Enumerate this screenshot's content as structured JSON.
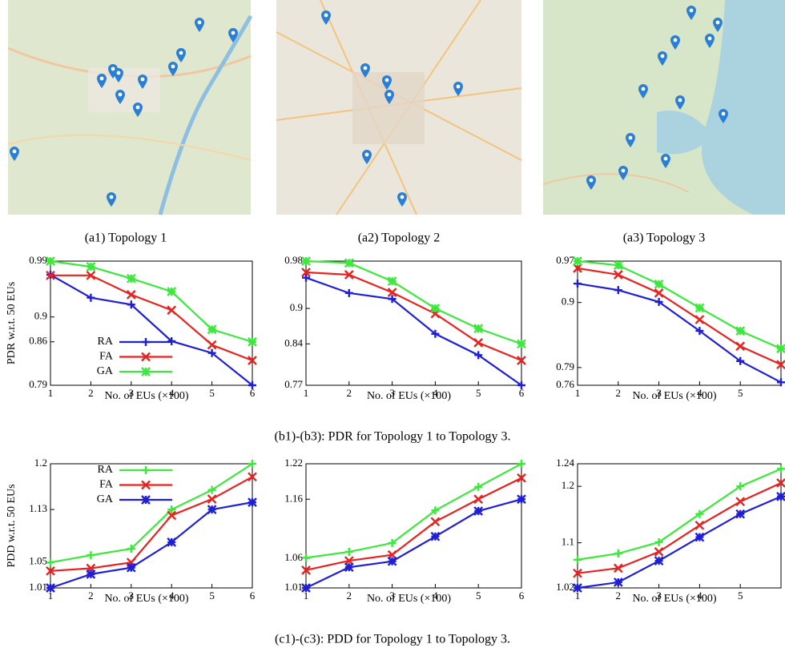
{
  "figure": {
    "map_captions": [
      "(a1) Topology 1",
      "(a2) Topology 2",
      "(a3) Topology 3"
    ],
    "row_captions": [
      "(b1)-(b3): PDR for Topology 1 to Topology 3.",
      "(c1)-(c3): PDD for Topology 1 to Topology 3."
    ]
  },
  "chart_data": [
    {
      "type": "line",
      "xlabel": "No. of EUs (×100)",
      "ylabel": "PDR w.r.t. 50 EUs",
      "legend": "center-left",
      "x": [
        1,
        2,
        3,
        4,
        5,
        6
      ],
      "xlim": [
        1,
        6
      ],
      "xticks": [
        1,
        2,
        3,
        4,
        5,
        6
      ],
      "ylim": [
        0.79,
        0.99
      ],
      "yticks": [
        0.79,
        0.86,
        0.9,
        0.99
      ],
      "series": [
        {
          "name": "RA",
          "color": "#1f1fd6",
          "values": [
            0.968,
            0.931,
            0.92,
            0.861,
            0.842,
            0.79
          ]
        },
        {
          "name": "FA",
          "color": "#e8231f",
          "values": [
            0.967,
            0.967,
            0.936,
            0.911,
            0.855,
            0.83
          ]
        },
        {
          "name": "GA",
          "color": "#3ce83c",
          "values": [
            0.99,
            0.981,
            0.962,
            0.941,
            0.88,
            0.86
          ]
        }
      ]
    },
    {
      "type": "line",
      "xlabel": "No. of EUs (×100)",
      "x": [
        1,
        2,
        3,
        4,
        5,
        6
      ],
      "xlim": [
        1,
        6
      ],
      "xticks": [
        1,
        2,
        3,
        4,
        5,
        6
      ],
      "ylim": [
        0.77,
        0.98
      ],
      "yticks": [
        0.77,
        0.84,
        0.9,
        0.98
      ],
      "series": [
        {
          "name": "RA",
          "color": "#1f1fd6",
          "values": [
            0.952,
            0.926,
            0.916,
            0.857,
            0.821,
            0.77
          ]
        },
        {
          "name": "FA",
          "color": "#e8231f",
          "values": [
            0.961,
            0.957,
            0.927,
            0.891,
            0.842,
            0.812
          ]
        },
        {
          "name": "GA",
          "color": "#3ce83c",
          "values": [
            0.98,
            0.977,
            0.946,
            0.9,
            0.866,
            0.84
          ]
        }
      ]
    },
    {
      "type": "line",
      "xlabel": "No. of EUs (×100)",
      "x": [
        1,
        2,
        3,
        4,
        5,
        6
      ],
      "xlim": [
        1,
        6
      ],
      "xticks": [
        1,
        2,
        3,
        4,
        5
      ],
      "ylim": [
        0.76,
        0.97
      ],
      "yticks": [
        0.76,
        0.79,
        0.9,
        0.97
      ],
      "series": [
        {
          "name": "RA",
          "color": "#1f1fd6",
          "values": [
            0.932,
            0.921,
            0.901,
            0.852,
            0.801,
            0.765
          ]
        },
        {
          "name": "FA",
          "color": "#e8231f",
          "values": [
            0.958,
            0.947,
            0.916,
            0.871,
            0.826,
            0.795
          ]
        },
        {
          "name": "GA",
          "color": "#3ce83c",
          "values": [
            0.97,
            0.963,
            0.931,
            0.891,
            0.852,
            0.822
          ]
        }
      ]
    },
    {
      "type": "line",
      "xlabel": "No. of EUs (×100)",
      "ylabel": "PDD w.r.t. 50 EUs",
      "legend": "upper-left",
      "x": [
        1,
        2,
        3,
        4,
        5,
        6
      ],
      "xlim": [
        1,
        6
      ],
      "xticks": [
        1,
        2,
        3,
        4,
        5,
        6
      ],
      "ylim": [
        1.01,
        1.2
      ],
      "yticks": [
        1.01,
        1.05,
        1.13,
        1.2
      ],
      "series": [
        {
          "name": "RA",
          "color": "#3ce83c",
          "values": [
            1.049,
            1.06,
            1.07,
            1.13,
            1.16,
            1.2
          ]
        },
        {
          "name": "FA",
          "color": "#e8231f",
          "values": [
            1.036,
            1.04,
            1.049,
            1.121,
            1.146,
            1.18
          ]
        },
        {
          "name": "GA",
          "color": "#1f1fd6",
          "values": [
            1.01,
            1.031,
            1.041,
            1.08,
            1.13,
            1.141
          ]
        }
      ]
    },
    {
      "type": "line",
      "xlabel": "No. of EUs (×100)",
      "x": [
        1,
        2,
        3,
        4,
        5,
        6
      ],
      "xlim": [
        1,
        6
      ],
      "xticks": [
        1,
        2,
        3,
        4,
        5,
        6
      ],
      "ylim": [
        1.01,
        1.22
      ],
      "yticks": [
        1.01,
        1.06,
        1.16,
        1.22
      ],
      "series": [
        {
          "name": "RA",
          "color": "#3ce83c",
          "values": [
            1.061,
            1.071,
            1.086,
            1.141,
            1.181,
            1.22
          ]
        },
        {
          "name": "FA",
          "color": "#e8231f",
          "values": [
            1.04,
            1.056,
            1.066,
            1.122,
            1.16,
            1.196
          ]
        },
        {
          "name": "GA",
          "color": "#1f1fd6",
          "values": [
            1.01,
            1.045,
            1.055,
            1.097,
            1.14,
            1.16
          ]
        }
      ]
    },
    {
      "type": "line",
      "xlabel": "No. of EUs (×100)",
      "x": [
        1,
        2,
        3,
        4,
        5,
        6
      ],
      "xlim": [
        1,
        6
      ],
      "xticks": [
        1,
        2,
        3,
        4,
        5
      ],
      "ylim": [
        1.02,
        1.24
      ],
      "yticks": [
        1.02,
        1.1,
        1.2,
        1.24
      ],
      "series": [
        {
          "name": "RA",
          "color": "#3ce83c",
          "values": [
            1.07,
            1.081,
            1.101,
            1.151,
            1.2,
            1.231
          ]
        },
        {
          "name": "FA",
          "color": "#e8231f",
          "values": [
            1.046,
            1.055,
            1.084,
            1.131,
            1.173,
            1.206
          ]
        },
        {
          "name": "GA",
          "color": "#1f1fd6",
          "values": [
            1.02,
            1.03,
            1.068,
            1.11,
            1.151,
            1.182
          ]
        }
      ]
    }
  ]
}
